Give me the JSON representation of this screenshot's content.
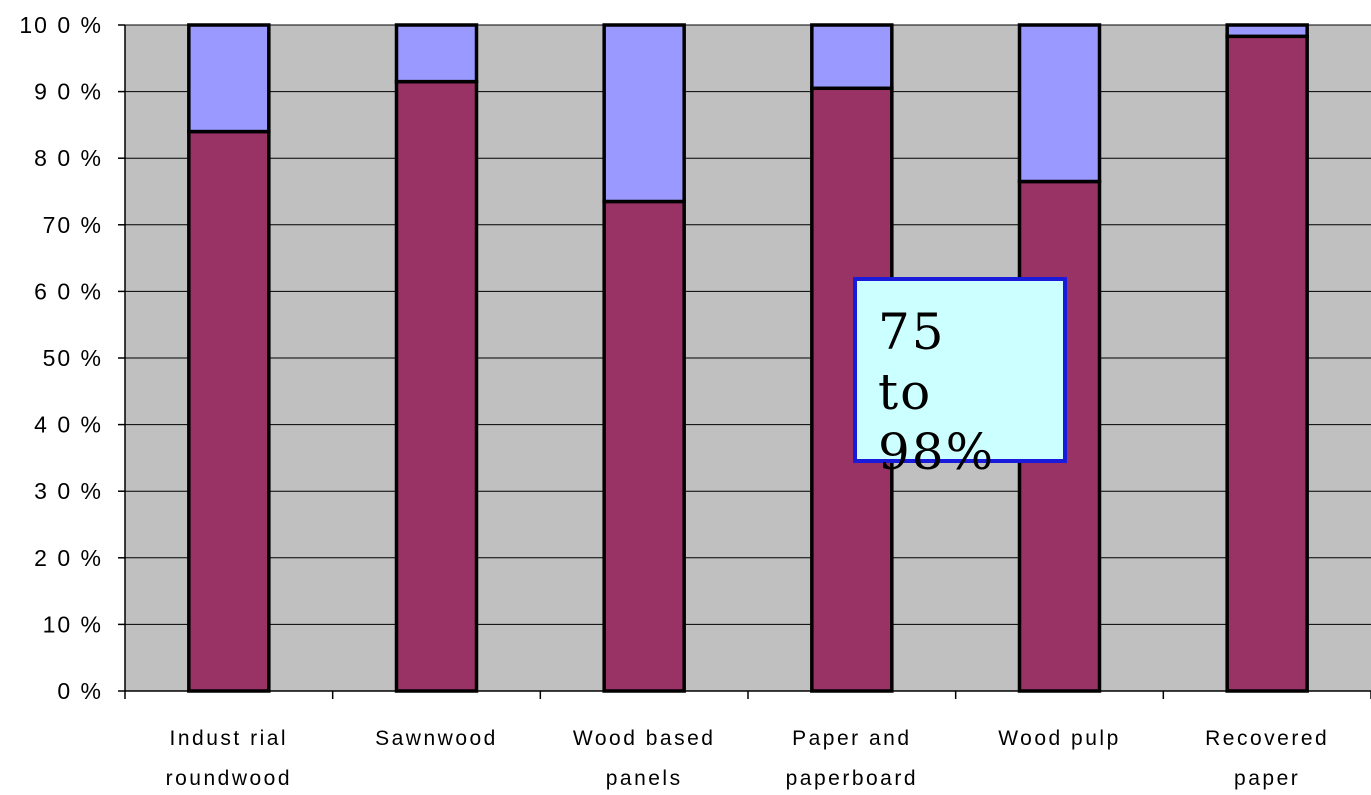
{
  "chart_data": {
    "type": "bar",
    "stacked": true,
    "percent": true,
    "categories": [
      [
        "Indust rial",
        "roundwood"
      ],
      [
        "Sawnwood"
      ],
      [
        "Wood based",
        "panels"
      ],
      [
        "Paper and",
        "paperboard"
      ],
      [
        "Wood pulp"
      ],
      [
        "Recovered",
        "paper"
      ]
    ],
    "series": [
      {
        "values": [
          84,
          91.5,
          73.5,
          90.5,
          76.5,
          98.3
        ],
        "color": "#993366"
      },
      {
        "values": [
          16,
          8.5,
          26.5,
          9.5,
          23.5,
          1.7
        ],
        "color": "#9999ff"
      }
    ],
    "y_ticks": [
      "0 %",
      "10 %",
      "2 0 %",
      "3 0 %",
      "4 0 %",
      "50 %",
      "6 0 %",
      "70 %",
      "8 0 %",
      "9 0 %",
      "10 0 %"
    ],
    "ylim": [
      0,
      100
    ],
    "grid": true,
    "plot_background": "#c0c0c0",
    "annotation": "75\nto\n98%"
  }
}
